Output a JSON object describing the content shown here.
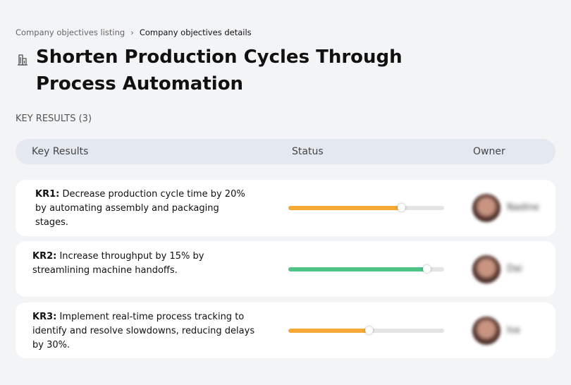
{
  "breadcrumb": {
    "parent": "Company objectives listing",
    "current": "Company objectives details"
  },
  "header": {
    "title": "Shorten Production Cycles Through Process Automation"
  },
  "section_label": "KEY RESULTS (3)",
  "table": {
    "columns": [
      "Key Results",
      "Status",
      "Owner"
    ],
    "rows": [
      {
        "id": "KR1:",
        "text": "Decrease production cycle time by 20% by automating assembly and packaging stages.",
        "progress": 73,
        "color": "#f7a935",
        "owner": "Nadine"
      },
      {
        "id": "KR2:",
        "text": "Increase throughput by 15% by streamlining machine handoffs.",
        "progress": 89,
        "color": "#4fc487",
        "owner": "Dai"
      },
      {
        "id": "KR3:",
        "text": "Implement real-time process tracking to identify and resolve slowdowns, reducing delays by 30%.",
        "progress": 52,
        "color": "#f7a935",
        "owner": "Isa"
      }
    ]
  }
}
